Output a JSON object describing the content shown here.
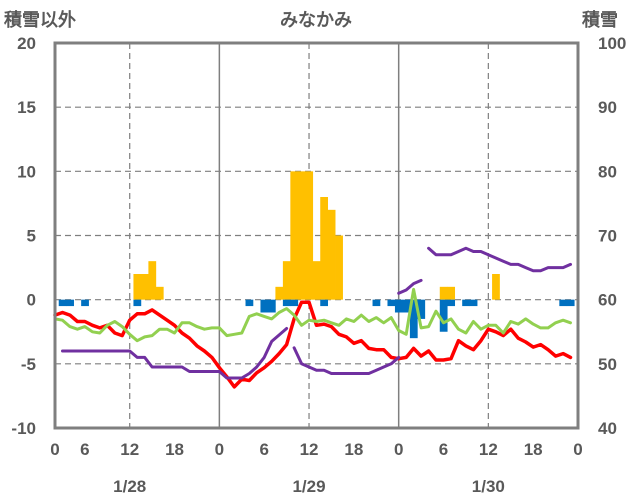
{
  "chart_data": {
    "type": "bar+line",
    "title": "みなかみ",
    "left_axis_label": "積雪以外",
    "right_axis_label": "積雪",
    "left_ylim": [
      -10,
      20
    ],
    "left_ticks": [
      20,
      15,
      10,
      5,
      0,
      -5,
      -10
    ],
    "right_ylim": [
      40,
      100
    ],
    "right_ticks": [
      100,
      90,
      80,
      70,
      60,
      50,
      40
    ],
    "x_range_hours": [
      0,
      70
    ],
    "x_ticks": [
      {
        "h": 0,
        "label": "0"
      },
      {
        "h": 4,
        "label": "6"
      },
      {
        "h": 10,
        "label": "12"
      },
      {
        "h": 16,
        "label": "18"
      },
      {
        "h": 22,
        "label": "0"
      },
      {
        "h": 28,
        "label": "6"
      },
      {
        "h": 34,
        "label": "12"
      },
      {
        "h": 40,
        "label": "18"
      },
      {
        "h": 46,
        "label": "0"
      },
      {
        "h": 52,
        "label": "6"
      },
      {
        "h": 58,
        "label": "12"
      },
      {
        "h": 64,
        "label": "18"
      },
      {
        "h": 70,
        "label": "0"
      }
    ],
    "day_gridlines": [
      22,
      46
    ],
    "dashed_gridlines": [
      10,
      34,
      58
    ],
    "date_labels": [
      {
        "h": 10,
        "label": "1/28"
      },
      {
        "h": 34,
        "label": "1/29"
      },
      {
        "h": 58,
        "label": "1/30"
      }
    ],
    "grid": true,
    "series": [
      {
        "kind": "bar",
        "color": "#FFC000",
        "axis": "left",
        "values": [
          [
            11,
            2
          ],
          [
            12,
            2
          ],
          [
            13,
            3
          ],
          [
            14,
            1
          ],
          [
            30,
            1
          ],
          [
            31,
            3
          ],
          [
            32,
            10
          ],
          [
            33,
            10
          ],
          [
            34,
            10
          ],
          [
            35,
            3
          ],
          [
            36,
            8
          ],
          [
            37,
            7
          ],
          [
            38,
            5
          ],
          [
            52,
            1
          ],
          [
            53,
            1
          ],
          [
            59,
            2
          ]
        ]
      },
      {
        "kind": "bar",
        "color": "#0070C0",
        "axis": "left",
        "values": [
          [
            1,
            -0.5
          ],
          [
            2,
            -0.5
          ],
          [
            4,
            -0.5
          ],
          [
            11,
            -0.5
          ],
          [
            26,
            -0.5
          ],
          [
            28,
            -1
          ],
          [
            29,
            -1
          ],
          [
            31,
            -0.5
          ],
          [
            32,
            -0.5
          ],
          [
            36,
            -0.5
          ],
          [
            43,
            -0.5
          ],
          [
            45,
            -0.5
          ],
          [
            46,
            -1
          ],
          [
            47,
            -1
          ],
          [
            48,
            -3
          ],
          [
            49,
            -1.5
          ],
          [
            52,
            -2.5
          ],
          [
            53,
            -0.5
          ],
          [
            55,
            -0.5
          ],
          [
            56,
            -0.5
          ],
          [
            68,
            -0.5
          ],
          [
            69,
            -0.5
          ]
        ]
      },
      {
        "kind": "line",
        "color": "#FF0000",
        "axis": "left",
        "points": [
          [
            0,
            -1.2
          ],
          [
            1,
            -1
          ],
          [
            2,
            -1.2
          ],
          [
            3,
            -1.7
          ],
          [
            4,
            -1.7
          ],
          [
            5,
            -2
          ],
          [
            6,
            -2.2
          ],
          [
            7,
            -2
          ],
          [
            8,
            -2.6
          ],
          [
            9,
            -2.8
          ],
          [
            10,
            -1.6
          ],
          [
            11,
            -1.1
          ],
          [
            12,
            -1.1
          ],
          [
            13,
            -0.8
          ],
          [
            14,
            -1.2
          ],
          [
            15,
            -1.6
          ],
          [
            16,
            -2
          ],
          [
            17,
            -2.6
          ],
          [
            18,
            -3
          ],
          [
            19,
            -3.6
          ],
          [
            20,
            -4
          ],
          [
            21,
            -4.5
          ],
          [
            22,
            -5.3
          ],
          [
            23,
            -6
          ],
          [
            24,
            -6.8
          ],
          [
            25,
            -6.2
          ],
          [
            26,
            -6.3
          ],
          [
            27,
            -5.7
          ],
          [
            28,
            -5.3
          ],
          [
            29,
            -4.8
          ],
          [
            30,
            -4.2
          ],
          [
            31,
            -3.5
          ],
          [
            32,
            -1.5
          ],
          [
            33,
            -0.2
          ],
          [
            34,
            -0.2
          ],
          [
            35,
            -2
          ],
          [
            36,
            -1.9
          ],
          [
            37,
            -2.1
          ],
          [
            38,
            -2.7
          ],
          [
            39,
            -2.9
          ],
          [
            40,
            -3.4
          ],
          [
            41,
            -3.2
          ],
          [
            42,
            -3.8
          ],
          [
            43,
            -3.9
          ],
          [
            44,
            -3.9
          ],
          [
            45,
            -4.5
          ],
          [
            46,
            -4.6
          ],
          [
            47,
            -4.5
          ],
          [
            48,
            -3.8
          ],
          [
            49,
            -4.4
          ],
          [
            50,
            -4
          ],
          [
            51,
            -4.7
          ],
          [
            52,
            -4.7
          ],
          [
            53,
            -4.6
          ],
          [
            54,
            -3.2
          ],
          [
            55,
            -3.6
          ],
          [
            56,
            -3.9
          ],
          [
            57,
            -3.2
          ],
          [
            58,
            -2.3
          ],
          [
            59,
            -2.5
          ],
          [
            60,
            -2.8
          ],
          [
            61,
            -2.3
          ],
          [
            62,
            -3
          ],
          [
            63,
            -3.3
          ],
          [
            64,
            -3.7
          ],
          [
            65,
            -3.5
          ],
          [
            66,
            -3.9
          ],
          [
            67,
            -4.4
          ],
          [
            68,
            -4.2
          ],
          [
            69,
            -4.5
          ]
        ]
      },
      {
        "kind": "line",
        "color": "#92D050",
        "axis": "left",
        "points": [
          [
            0,
            -1.5
          ],
          [
            1,
            -1.6
          ],
          [
            2,
            -2.1
          ],
          [
            3,
            -2.3
          ],
          [
            4,
            -2.1
          ],
          [
            5,
            -2.5
          ],
          [
            6,
            -2.6
          ],
          [
            7,
            -2
          ],
          [
            8,
            -1.7
          ],
          [
            9,
            -2.1
          ],
          [
            10,
            -2.7
          ],
          [
            11,
            -3.2
          ],
          [
            12,
            -2.9
          ],
          [
            13,
            -2.8
          ],
          [
            14,
            -2.3
          ],
          [
            15,
            -2.3
          ],
          [
            16,
            -2.6
          ],
          [
            17,
            -1.8
          ],
          [
            18,
            -1.8
          ],
          [
            19,
            -2.1
          ],
          [
            20,
            -2.3
          ],
          [
            21,
            -2.2
          ],
          [
            22,
            -2.2
          ],
          [
            23,
            -2.8
          ],
          [
            24,
            -2.7
          ],
          [
            25,
            -2.6
          ],
          [
            26,
            -1.3
          ],
          [
            27,
            -1.1
          ],
          [
            28,
            -1.3
          ],
          [
            29,
            -1.5
          ],
          [
            30,
            -1
          ],
          [
            31,
            -0.7
          ],
          [
            32,
            -1.2
          ],
          [
            33,
            -2
          ],
          [
            34,
            -1.6
          ],
          [
            35,
            -1.7
          ],
          [
            36,
            -1.6
          ],
          [
            37,
            -1.8
          ],
          [
            38,
            -2
          ],
          [
            39,
            -1.5
          ],
          [
            40,
            -1.7
          ],
          [
            41,
            -1.2
          ],
          [
            42,
            -1.7
          ],
          [
            43,
            -1.4
          ],
          [
            44,
            -1.8
          ],
          [
            45,
            -1.4
          ],
          [
            46,
            -2.4
          ],
          [
            47,
            -2.7
          ],
          [
            48,
            0.8
          ],
          [
            49,
            -2.2
          ],
          [
            50,
            -2.1
          ],
          [
            51,
            -0.9
          ],
          [
            52,
            -1.8
          ],
          [
            53,
            -1.5
          ],
          [
            54,
            -2.3
          ],
          [
            55,
            -2.6
          ],
          [
            56,
            -1.7
          ],
          [
            57,
            -2.3
          ],
          [
            58,
            -2
          ],
          [
            59,
            -2
          ],
          [
            60,
            -2.6
          ],
          [
            61,
            -1.7
          ],
          [
            62,
            -1.9
          ],
          [
            63,
            -1.5
          ],
          [
            64,
            -1.9
          ],
          [
            65,
            -2.2
          ],
          [
            66,
            -2.2
          ],
          [
            67,
            -1.8
          ],
          [
            68,
            -1.6
          ],
          [
            69,
            -1.8
          ]
        ]
      },
      {
        "kind": "line",
        "color": "#7030A0",
        "axis": "right",
        "segments": [
          [
            [
              1,
              52
            ],
            [
              2,
              52
            ],
            [
              3,
              52
            ],
            [
              4,
              52
            ],
            [
              5,
              52
            ],
            [
              6,
              52
            ],
            [
              7,
              52
            ],
            [
              8,
              52
            ],
            [
              9,
              52
            ],
            [
              10,
              52
            ],
            [
              11,
              51
            ],
            [
              12,
              51
            ],
            [
              13,
              49.5
            ],
            [
              14,
              49.5
            ],
            [
              15,
              49.5
            ],
            [
              16,
              49.5
            ],
            [
              17,
              49.5
            ],
            [
              18,
              48.8
            ],
            [
              19,
              48.8
            ],
            [
              20,
              48.8
            ],
            [
              21,
              48.8
            ],
            [
              22,
              48.8
            ],
            [
              23,
              47.8
            ],
            [
              24,
              47.8
            ],
            [
              25,
              47.8
            ],
            [
              26,
              48.5
            ],
            [
              27,
              49.5
            ],
            [
              28,
              51
            ],
            [
              29,
              53.5
            ],
            [
              30,
              54.5
            ],
            [
              31,
              55.5
            ]
          ],
          [
            [
              32,
              52.5
            ],
            [
              33,
              50
            ],
            [
              34,
              49.5
            ],
            [
              35,
              49
            ],
            [
              36,
              49
            ],
            [
              37,
              48.5
            ],
            [
              38,
              48.5
            ],
            [
              39,
              48.5
            ],
            [
              40,
              48.5
            ],
            [
              41,
              48.5
            ],
            [
              42,
              48.5
            ],
            [
              43,
              49
            ],
            [
              44,
              49.5
            ],
            [
              45,
              50
            ],
            [
              46,
              51
            ]
          ],
          [
            [
              46,
              61
            ],
            [
              47,
              61.5
            ],
            [
              48,
              62.5
            ],
            [
              49,
              63
            ]
          ],
          [
            [
              50,
              68
            ],
            [
              51,
              67
            ],
            [
              52,
              67
            ],
            [
              53,
              67
            ],
            [
              54,
              67.5
            ],
            [
              55,
              68
            ],
            [
              56,
              67.5
            ],
            [
              57,
              67.5
            ],
            [
              58,
              67
            ],
            [
              59,
              66.5
            ],
            [
              60,
              66
            ],
            [
              61,
              65.5
            ],
            [
              62,
              65.5
            ],
            [
              63,
              65
            ],
            [
              64,
              64.5
            ],
            [
              65,
              64.5
            ],
            [
              66,
              65
            ],
            [
              67,
              65
            ],
            [
              68,
              65
            ],
            [
              69,
              65.5
            ]
          ]
        ]
      }
    ]
  }
}
